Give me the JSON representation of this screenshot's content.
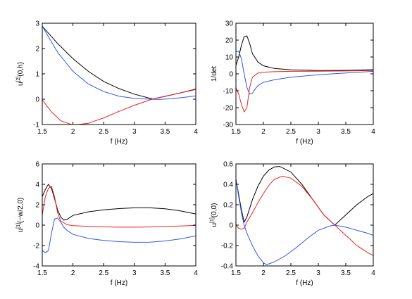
{
  "chart_data": [
    {
      "type": "line",
      "xlabel": "f (Hz)",
      "ylabel_main": "u",
      "ylabel_sup": "[2]",
      "ylabel_tail": "(0,h)",
      "xlim": [
        1.5,
        4
      ],
      "ylim": [
        -1,
        3
      ],
      "xticks": [
        "1.5",
        "2",
        "2.5",
        "3",
        "3.5",
        "4"
      ],
      "yticks": [
        "-1",
        "0",
        "1",
        "2",
        "3"
      ],
      "series": [
        {
          "color": "#000000",
          "x": [
            1.5,
            1.75,
            2,
            2.25,
            2.5,
            2.75,
            3,
            3.25,
            3.3,
            3.5,
            3.75,
            4
          ],
          "y": [
            2.88,
            2.2,
            1.6,
            1.1,
            0.7,
            0.42,
            0.2,
            0.04,
            0.01,
            0.11,
            0.25,
            0.4
          ]
        },
        {
          "color": "#3355ee",
          "x": [
            1.5,
            1.75,
            2,
            2.25,
            2.5,
            2.75,
            3,
            3.25,
            3.4,
            3.6,
            3.8,
            4
          ],
          "y": [
            2.88,
            1.85,
            1.1,
            0.6,
            0.3,
            0.12,
            0.03,
            0.0,
            -0.01,
            0.02,
            0.07,
            0.13
          ]
        },
        {
          "color": "#ee2222",
          "x": [
            1.5,
            1.65,
            1.8,
            2,
            2.25,
            2.5,
            2.75,
            3,
            3.3,
            3.5,
            3.75,
            4
          ],
          "y": [
            -0.03,
            -0.5,
            -0.85,
            -1.02,
            -0.95,
            -0.74,
            -0.48,
            -0.24,
            0.01,
            0.12,
            0.25,
            0.38
          ]
        }
      ]
    },
    {
      "type": "line",
      "xlabel": "f (Hz)",
      "ylabel_main": "1/det",
      "ylabel_sup": "",
      "ylabel_tail": "",
      "xlim": [
        1.5,
        4
      ],
      "ylim": [
        -30,
        30
      ],
      "xticks": [
        "1.5",
        "2",
        "2.5",
        "3",
        "3.5",
        "4"
      ],
      "yticks": [
        "-30",
        "-20",
        "-10",
        "0",
        "10",
        "20",
        "30"
      ],
      "series": [
        {
          "color": "#000000",
          "x": [
            1.5,
            1.55,
            1.6,
            1.65,
            1.7,
            1.75,
            1.8,
            1.9,
            2,
            2.2,
            2.5,
            3,
            3.5,
            4
          ],
          "y": [
            5,
            10,
            17,
            22,
            22.5,
            18,
            12,
            7,
            4.8,
            3.2,
            2.4,
            2,
            2.1,
            2.5
          ]
        },
        {
          "color": "#3355ee",
          "x": [
            1.5,
            1.55,
            1.6,
            1.65,
            1.7,
            1.75,
            1.8,
            1.85,
            1.9,
            2,
            2.2,
            2.5,
            3,
            3.5,
            4
          ],
          "y": [
            13,
            13.5,
            9,
            0,
            -8,
            -12,
            -11.5,
            -9,
            -7,
            -5,
            -3.5,
            -2,
            -0.5,
            0.5,
            1.5
          ]
        },
        {
          "color": "#ee2222",
          "x": [
            1.5,
            1.55,
            1.6,
            1.65,
            1.7,
            1.75,
            1.8,
            1.9,
            2,
            2.2,
            2.5,
            3,
            3.5,
            4
          ],
          "y": [
            -8,
            -12,
            -18,
            -22.5,
            -20,
            -8,
            -2,
            0.5,
            1,
            1.3,
            1.5,
            1.6,
            1.7,
            2
          ]
        }
      ]
    },
    {
      "type": "line",
      "xlabel": "f (Hz)",
      "ylabel_main": "u",
      "ylabel_sup": "[1]",
      "ylabel_tail": "(−w/2,0)",
      "xlim": [
        1.5,
        4
      ],
      "ylim": [
        -4,
        6
      ],
      "xticks": [
        "1.5",
        "2",
        "2.5",
        "3",
        "3.5",
        "4"
      ],
      "yticks": [
        "-4",
        "-2",
        "0",
        "2",
        "4",
        "6"
      ],
      "series": [
        {
          "color": "#000000",
          "x": [
            1.5,
            1.55,
            1.6,
            1.65,
            1.7,
            1.75,
            1.8,
            1.85,
            1.9,
            2,
            2.25,
            2.5,
            2.75,
            3,
            3.25,
            3.5,
            3.75,
            4
          ],
          "y": [
            2.8,
            3.5,
            4,
            3.6,
            2.6,
            1.5,
            0.8,
            0.5,
            0.55,
            0.95,
            1.3,
            1.5,
            1.62,
            1.7,
            1.7,
            1.6,
            1.4,
            1.1
          ]
        },
        {
          "color": "#3355ee",
          "x": [
            1.5,
            1.55,
            1.6,
            1.65,
            1.7,
            1.75,
            1.8,
            1.85,
            1.9,
            2,
            2.25,
            2.5,
            2.75,
            3,
            3.25,
            3.5,
            3.75,
            4
          ],
          "y": [
            -2.5,
            -2.7,
            -2.5,
            -0.8,
            0.6,
            0.7,
            0.3,
            -0.2,
            -0.5,
            -0.9,
            -1.3,
            -1.5,
            -1.62,
            -1.68,
            -1.67,
            -1.55,
            -1.35,
            -1.05
          ]
        },
        {
          "color": "#ee2222",
          "x": [
            1.5,
            1.55,
            1.6,
            1.65,
            1.7,
            1.75,
            1.8,
            1.9,
            2,
            2.25,
            2.5,
            2.75,
            3,
            3.25,
            3.5,
            3.75,
            4
          ],
          "y": [
            1,
            2.8,
            3.6,
            3.8,
            2.8,
            1.2,
            0.4,
            0.05,
            -0.05,
            -0.12,
            -0.17,
            -0.2,
            -0.2,
            -0.18,
            -0.13,
            -0.08,
            -0.03
          ]
        }
      ]
    },
    {
      "type": "line",
      "xlabel": "f (Hz)",
      "ylabel_main": "u",
      "ylabel_sup": "[1]",
      "ylabel_tail": "(0,0)",
      "xlim": [
        1.5,
        4
      ],
      "ylim": [
        -0.4,
        0.6
      ],
      "xticks": [
        "1.5",
        "2",
        "2.5",
        "3",
        "3.5",
        "4"
      ],
      "yticks": [
        "-0.4",
        "-0.2",
        "0",
        "0.2",
        "0.4",
        "0.6"
      ],
      "series": [
        {
          "color": "#000000",
          "x": [
            1.5,
            1.55,
            1.6,
            1.65,
            1.7,
            1.8,
            1.9,
            2,
            2.1,
            2.2,
            2.3,
            2.5,
            2.7,
            2.9,
            3.1,
            3.3,
            3.5,
            3.7,
            3.9,
            4
          ],
          "y": [
            0.45,
            0.3,
            0.15,
            0.03,
            0.08,
            0.25,
            0.38,
            0.48,
            0.54,
            0.57,
            0.575,
            0.52,
            0.4,
            0.25,
            0.1,
            0.0,
            0.1,
            0.2,
            0.28,
            0.31
          ]
        },
        {
          "color": "#ee2222",
          "x": [
            1.5,
            1.55,
            1.6,
            1.65,
            1.7,
            1.8,
            1.9,
            2,
            2.1,
            2.2,
            2.35,
            2.5,
            2.7,
            2.9,
            3.1,
            3.3,
            3.5,
            3.7,
            3.9,
            4
          ],
          "y": [
            0.0,
            -0.03,
            -0.04,
            -0.03,
            0.03,
            0.12,
            0.22,
            0.31,
            0.39,
            0.45,
            0.48,
            0.46,
            0.38,
            0.25,
            0.1,
            0.0,
            -0.1,
            -0.2,
            -0.27,
            -0.3
          ]
        },
        {
          "color": "#3355ee",
          "x": [
            1.5,
            1.55,
            1.6,
            1.65,
            1.7,
            1.8,
            1.9,
            2,
            2.05,
            2.1,
            2.2,
            2.4,
            2.6,
            2.8,
            3,
            3.2,
            3.3,
            3.5,
            3.7,
            3.9,
            4
          ],
          "y": [
            0.45,
            0.28,
            0.12,
            0.0,
            -0.08,
            -0.2,
            -0.3,
            -0.37,
            -0.385,
            -0.38,
            -0.36,
            -0.3,
            -0.22,
            -0.13,
            -0.05,
            -0.01,
            0.0,
            -0.02,
            -0.05,
            -0.08,
            -0.1
          ]
        }
      ]
    }
  ]
}
